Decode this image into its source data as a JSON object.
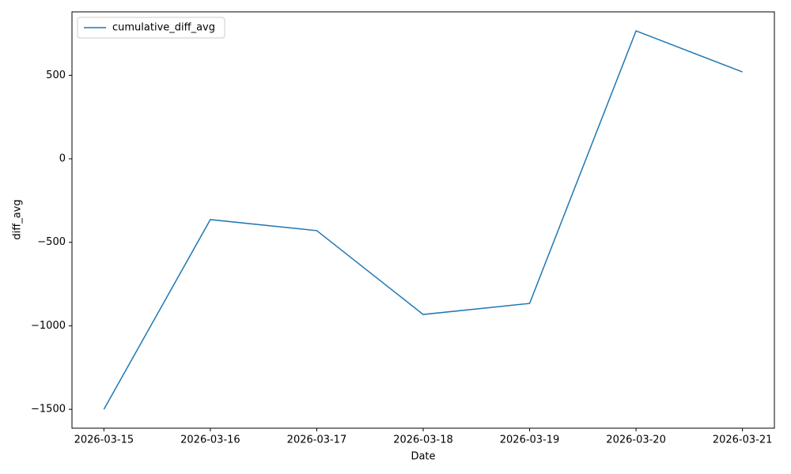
{
  "chart_data": {
    "type": "line",
    "x_label": "Date",
    "y_label": "diff_avg",
    "categories": [
      "2026-03-15",
      "2026-03-16",
      "2026-03-17",
      "2026-03-18",
      "2026-03-19",
      "2026-03-20",
      "2026-03-21"
    ],
    "series": [
      {
        "name": "cumulative_diff_avg",
        "color": "#1f77b4",
        "values": [
          -1500,
          -364,
          -430,
          -932,
          -866,
          766,
          520
        ]
      }
    ],
    "ylim": [
      -1613,
      880
    ],
    "yticks": [
      {
        "value": -1500,
        "label": "−1500"
      },
      {
        "value": -1000,
        "label": "−1000"
      },
      {
        "value": -500,
        "label": "−500"
      },
      0,
      500
    ],
    "grid": false,
    "legend": "upper left"
  }
}
